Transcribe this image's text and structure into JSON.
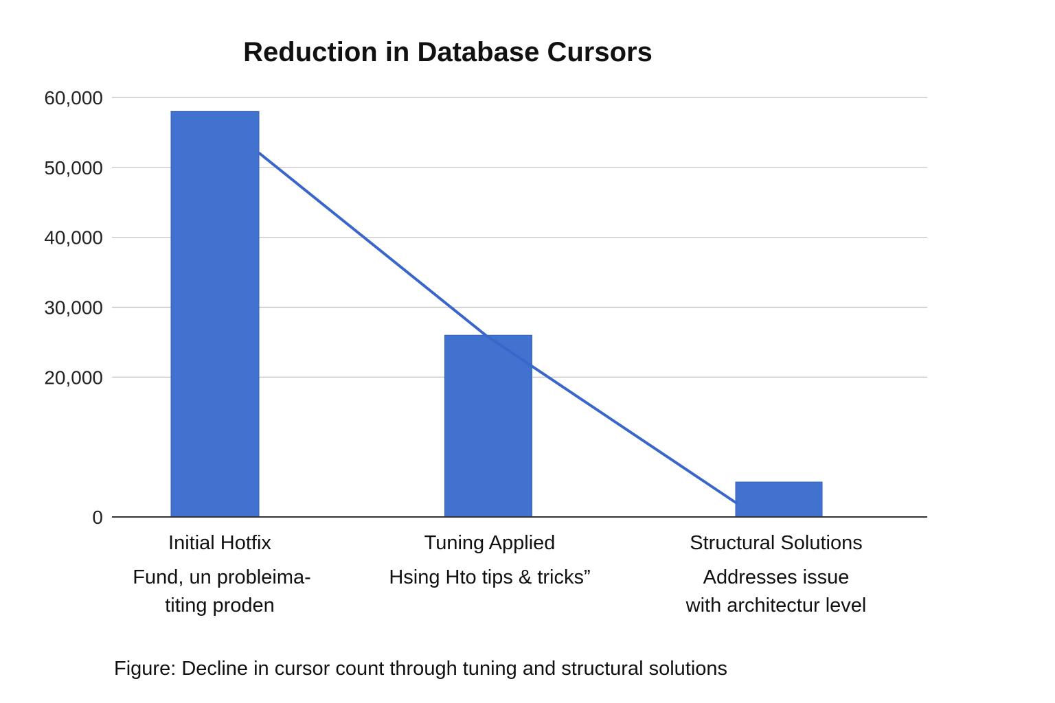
{
  "chart_data": {
    "type": "bar",
    "title": "Reduction in Database Cursors",
    "categories": [
      "Initial Hotfix",
      "Tuning Applied",
      "Structural Solutions"
    ],
    "category_notes": [
      [
        "Fund, un probleima-",
        "titing proden"
      ],
      [
        "Hsing Hto tips & tricks”"
      ],
      [
        "Addresses issue",
        "with architectur level"
      ]
    ],
    "values": [
      58000,
      26000,
      5000
    ],
    "trend_line": [
      52000,
      26000,
      2000
    ],
    "yticks": [
      0,
      20000,
      30000,
      40000,
      50000,
      60000
    ],
    "ytick_labels": [
      "0",
      "20,000",
      "30,000",
      "40,000",
      "50,000",
      "60,000"
    ],
    "ylim": [
      0,
      60000
    ],
    "xlabel": "",
    "ylabel": "",
    "grid": true,
    "legend": "none",
    "caption": "Figure: Decline in cursor count through tuning and structural solutions",
    "colors": {
      "bar": "#4272d0",
      "bar_edge": "#3560bb",
      "line": "#3a66cc",
      "grid": "#bdbdbd",
      "axis": "#333333"
    }
  }
}
